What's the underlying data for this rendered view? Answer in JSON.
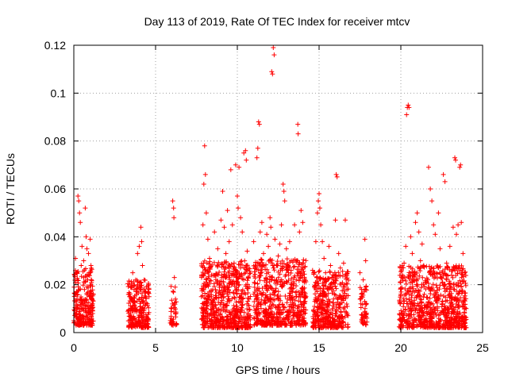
{
  "chart_data": {
    "type": "scatter",
    "title": "Day 113 of 2019, Rate Of TEC Index for receiver mtcv",
    "xlabel": "GPS time / hours",
    "ylabel": "ROTI / TECUs",
    "xlim": [
      0,
      25
    ],
    "ylim": [
      0,
      0.12
    ],
    "xticks": [
      0,
      5,
      10,
      15,
      20,
      25
    ],
    "xtick_labels": [
      "0",
      "5",
      "10",
      "15",
      "20",
      "25"
    ],
    "yticks": [
      0,
      0.02,
      0.04,
      0.06,
      0.08,
      0.1,
      0.12
    ],
    "ytick_labels": [
      "0",
      "0.02",
      "0.04",
      "0.06",
      "0.08",
      "0.1",
      "0.12"
    ],
    "grid": true,
    "marker": "+",
    "series_color": "#ff0000",
    "series": [
      {
        "name": "ROTI",
        "points": [
          [
            0.05,
            0.024
          ],
          [
            0.1,
            0.031
          ],
          [
            0.15,
            0.008
          ],
          [
            0.2,
            0.014
          ],
          [
            0.25,
            0.057
          ],
          [
            0.3,
            0.055
          ],
          [
            0.35,
            0.05
          ],
          [
            0.4,
            0.046
          ],
          [
            0.45,
            0.028
          ],
          [
            0.5,
            0.036
          ],
          [
            0.55,
            0.012
          ],
          [
            0.6,
            0.03
          ],
          [
            0.65,
            0.018
          ],
          [
            0.7,
            0.052
          ],
          [
            0.75,
            0.04
          ],
          [
            0.8,
            0.035
          ],
          [
            0.85,
            0.022
          ],
          [
            0.9,
            0.033
          ],
          [
            0.95,
            0.015
          ],
          [
            1.0,
            0.039
          ],
          [
            1.05,
            0.028
          ],
          [
            1.1,
            0.01
          ],
          [
            3.4,
            0.02
          ],
          [
            3.5,
            0.014
          ],
          [
            3.6,
            0.025
          ],
          [
            3.7,
            0.011
          ],
          [
            3.8,
            0.018
          ],
          [
            3.9,
            0.033
          ],
          [
            4.0,
            0.036
          ],
          [
            4.1,
            0.044
          ],
          [
            4.15,
            0.038
          ],
          [
            4.2,
            0.028
          ],
          [
            4.3,
            0.022
          ],
          [
            4.4,
            0.017
          ],
          [
            4.5,
            0.012
          ],
          [
            4.6,
            0.015
          ],
          [
            6.05,
            0.055
          ],
          [
            6.1,
            0.052
          ],
          [
            6.12,
            0.048
          ],
          [
            6.15,
            0.023
          ],
          [
            6.2,
            0.019
          ],
          [
            6.22,
            0.014
          ],
          [
            6.25,
            0.008
          ],
          [
            7.8,
            0.015
          ],
          [
            7.9,
            0.045
          ],
          [
            7.95,
            0.062
          ],
          [
            8.0,
            0.078
          ],
          [
            8.05,
            0.066
          ],
          [
            8.1,
            0.05
          ],
          [
            8.2,
            0.039
          ],
          [
            8.3,
            0.031
          ],
          [
            8.5,
            0.024
          ],
          [
            8.6,
            0.042
          ],
          [
            8.8,
            0.035
          ],
          [
            9.0,
            0.047
          ],
          [
            9.1,
            0.059
          ],
          [
            9.2,
            0.044
          ],
          [
            9.3,
            0.033
          ],
          [
            9.4,
            0.051
          ],
          [
            9.5,
            0.038
          ],
          [
            9.6,
            0.068
          ],
          [
            9.7,
            0.045
          ],
          [
            9.8,
            0.029
          ],
          [
            9.9,
            0.07
          ],
          [
            10.0,
            0.057
          ],
          [
            10.05,
            0.052
          ],
          [
            10.1,
            0.069
          ],
          [
            10.2,
            0.048
          ],
          [
            10.3,
            0.042
          ],
          [
            10.4,
            0.075
          ],
          [
            10.5,
            0.076
          ],
          [
            10.55,
            0.072
          ],
          [
            10.6,
            0.034
          ],
          [
            11.0,
            0.038
          ],
          [
            11.2,
            0.073
          ],
          [
            11.25,
            0.077
          ],
          [
            11.3,
            0.088
          ],
          [
            11.35,
            0.087
          ],
          [
            11.4,
            0.042
          ],
          [
            11.5,
            0.046
          ],
          [
            11.6,
            0.033
          ],
          [
            11.8,
            0.041
          ],
          [
            11.9,
            0.036
          ],
          [
            12.0,
            0.048
          ],
          [
            12.05,
            0.044
          ],
          [
            12.1,
            0.109
          ],
          [
            12.15,
            0.108
          ],
          [
            12.2,
            0.119
          ],
          [
            12.25,
            0.116
          ],
          [
            12.3,
            0.039
          ],
          [
            12.4,
            0.028
          ],
          [
            12.5,
            0.032
          ],
          [
            12.6,
            0.037
          ],
          [
            12.7,
            0.045
          ],
          [
            12.8,
            0.062
          ],
          [
            12.85,
            0.059
          ],
          [
            12.9,
            0.055
          ],
          [
            13.0,
            0.035
          ],
          [
            13.1,
            0.026
          ],
          [
            13.2,
            0.038
          ],
          [
            13.3,
            0.03
          ],
          [
            13.5,
            0.045
          ],
          [
            13.6,
            0.022
          ],
          [
            13.7,
            0.087
          ],
          [
            13.72,
            0.083
          ],
          [
            13.8,
            0.042
          ],
          [
            13.9,
            0.051
          ],
          [
            14.0,
            0.046
          ],
          [
            14.1,
            0.021
          ],
          [
            14.2,
            0.015
          ],
          [
            14.6,
            0.026
          ],
          [
            14.8,
            0.038
          ],
          [
            14.9,
            0.05
          ],
          [
            14.95,
            0.055
          ],
          [
            15.0,
            0.058
          ],
          [
            15.05,
            0.052
          ],
          [
            15.1,
            0.045
          ],
          [
            15.2,
            0.038
          ],
          [
            15.3,
            0.031
          ],
          [
            15.4,
            0.025
          ],
          [
            15.6,
            0.036
          ],
          [
            15.7,
            0.028
          ],
          [
            15.9,
            0.022
          ],
          [
            16.0,
            0.047
          ],
          [
            16.05,
            0.066
          ],
          [
            16.1,
            0.065
          ],
          [
            16.2,
            0.033
          ],
          [
            16.3,
            0.027
          ],
          [
            16.5,
            0.029
          ],
          [
            16.6,
            0.047
          ],
          [
            16.7,
            0.018
          ],
          [
            17.5,
            0.025
          ],
          [
            17.6,
            0.018
          ],
          [
            17.7,
            0.022
          ],
          [
            17.8,
            0.039
          ],
          [
            17.85,
            0.03
          ],
          [
            17.9,
            0.012
          ],
          [
            20.0,
            0.016
          ],
          [
            20.1,
            0.024
          ],
          [
            20.2,
            0.029
          ],
          [
            20.3,
            0.036
          ],
          [
            20.35,
            0.091
          ],
          [
            20.4,
            0.094
          ],
          [
            20.45,
            0.095
          ],
          [
            20.5,
            0.094
          ],
          [
            20.6,
            0.04
          ],
          [
            20.7,
            0.033
          ],
          [
            20.8,
            0.025
          ],
          [
            20.9,
            0.046
          ],
          [
            21.0,
            0.05
          ],
          [
            21.1,
            0.042
          ],
          [
            21.2,
            0.03
          ],
          [
            21.3,
            0.037
          ],
          [
            21.4,
            0.028
          ],
          [
            21.6,
            0.022
          ],
          [
            21.7,
            0.069
          ],
          [
            21.8,
            0.06
          ],
          [
            21.9,
            0.055
          ],
          [
            22.0,
            0.045
          ],
          [
            22.1,
            0.041
          ],
          [
            22.3,
            0.05
          ],
          [
            22.4,
            0.035
          ],
          [
            22.6,
            0.066
          ],
          [
            22.7,
            0.063
          ],
          [
            22.8,
            0.029
          ],
          [
            23.0,
            0.036
          ],
          [
            23.1,
            0.024
          ],
          [
            23.2,
            0.044
          ],
          [
            23.3,
            0.073
          ],
          [
            23.35,
            0.072
          ],
          [
            23.4,
            0.041
          ],
          [
            23.5,
            0.045
          ],
          [
            23.6,
            0.069
          ],
          [
            23.65,
            0.07
          ],
          [
            23.7,
            0.046
          ],
          [
            23.8,
            0.033
          ],
          [
            23.9,
            0.025
          ]
        ]
      }
    ],
    "dense_bands": [
      {
        "x_start": 0.0,
        "x_end": 1.2,
        "y_min": 0.003,
        "y_max": 0.027,
        "density": 250
      },
      {
        "x_start": 3.3,
        "x_end": 4.6,
        "y_min": 0.002,
        "y_max": 0.022,
        "density": 240
      },
      {
        "x_start": 5.9,
        "x_end": 6.3,
        "y_min": 0.003,
        "y_max": 0.02,
        "density": 40
      },
      {
        "x_start": 7.8,
        "x_end": 10.8,
        "y_min": 0.002,
        "y_max": 0.03,
        "density": 650
      },
      {
        "x_start": 11.0,
        "x_end": 14.2,
        "y_min": 0.003,
        "y_max": 0.031,
        "density": 620
      },
      {
        "x_start": 14.6,
        "x_end": 16.8,
        "y_min": 0.002,
        "y_max": 0.026,
        "density": 420
      },
      {
        "x_start": 17.5,
        "x_end": 17.95,
        "y_min": 0.003,
        "y_max": 0.02,
        "density": 50
      },
      {
        "x_start": 19.9,
        "x_end": 24.0,
        "y_min": 0.002,
        "y_max": 0.028,
        "density": 780
      }
    ]
  }
}
